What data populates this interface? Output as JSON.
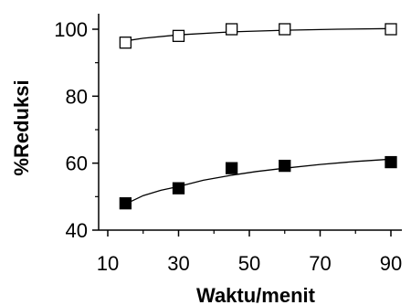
{
  "chart_data": {
    "type": "scatter",
    "xlabel": "Waktu/menit",
    "ylabel": "%Reduksi",
    "xlim": [
      10,
      90
    ],
    "ylim": [
      40,
      100
    ],
    "xticks": [
      10,
      30,
      50,
      70,
      90
    ],
    "yticks": [
      40,
      60,
      80,
      100
    ],
    "x_minor_ticks": [
      20,
      40,
      60,
      80
    ],
    "y_minor_ticks": [
      50,
      70,
      90
    ],
    "grid": false,
    "legend": "none",
    "series": [
      {
        "marker": "open-square",
        "color": "#000000",
        "x": [
          15,
          30,
          45,
          60,
          90
        ],
        "y": [
          96,
          98,
          100,
          100,
          100
        ],
        "fit_curve": {
          "x": [
            15,
            20,
            30,
            45,
            60,
            75,
            90
          ],
          "y": [
            96.5,
            97.3,
            98.3,
            99.2,
            99.7,
            100.0,
            100.2
          ]
        }
      },
      {
        "marker": "filled-square",
        "color": "#000000",
        "x": [
          15,
          30,
          45,
          60,
          90
        ],
        "y": [
          48,
          52.5,
          58.5,
          59.2,
          60.3
        ],
        "fit_curve": {
          "x": [
            15,
            20,
            25,
            30,
            37,
            45,
            52,
            60,
            70,
            80,
            90
          ],
          "y": [
            47.8,
            50.3,
            51.9,
            53.0,
            54.9,
            56.4,
            57.5,
            58.5,
            59.6,
            60.5,
            61.2
          ]
        }
      }
    ]
  }
}
